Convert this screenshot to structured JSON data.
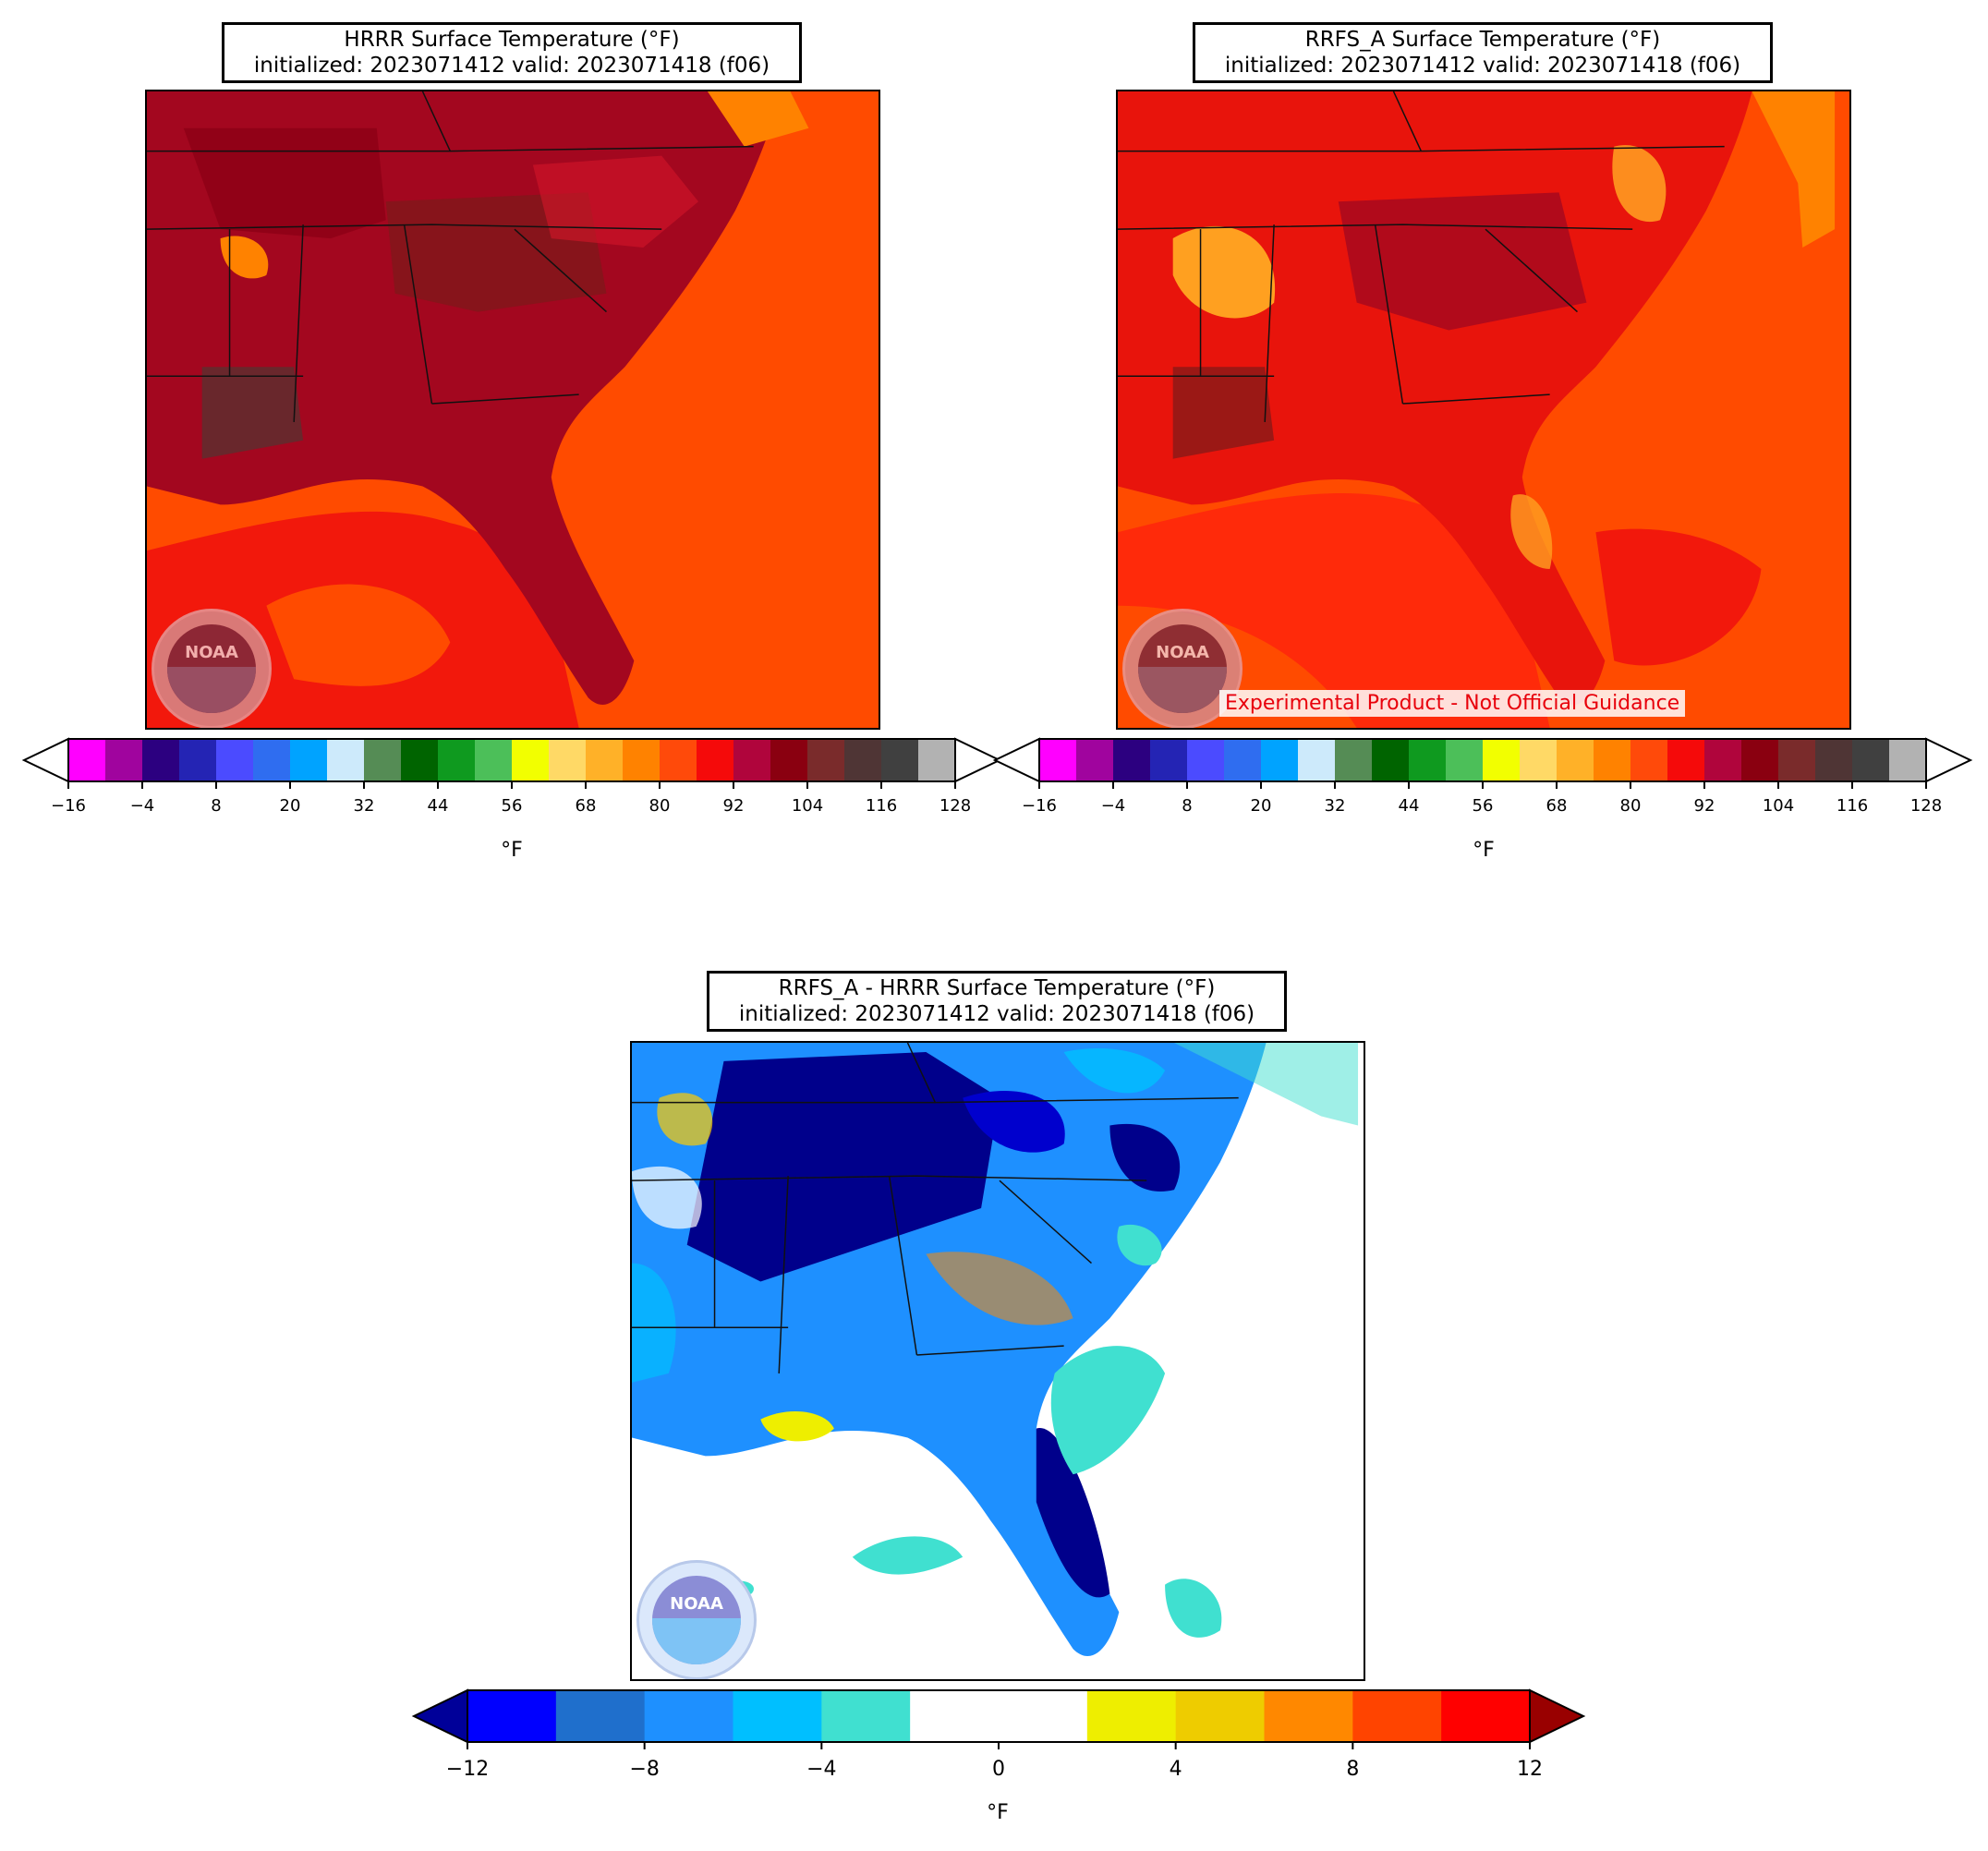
{
  "panels": {
    "hrrr": {
      "title_line1": "HRRR Surface Temperature (°F)",
      "title_line2": "initialized: 2023071412 valid: 2023071418 (f06)"
    },
    "rrfs": {
      "title_line1": "RRFS_A Surface Temperature (°F)",
      "title_line2": "initialized: 2023071412 valid: 2023071418 (f06)",
      "banner": "Experimental Product - Not Official Guidance"
    },
    "diff": {
      "title_line1": "RRFS_A - HRRR Surface Temperature (°F)",
      "title_line2": "initialized: 2023071412 valid: 2023071418 (f06)"
    }
  },
  "logo": {
    "text": "NOAA",
    "icon": "noaa-logo-icon"
  },
  "temp_colorbar": {
    "unit": "°F",
    "ticks": [
      "−16",
      "−4",
      "8",
      "20",
      "32",
      "44",
      "56",
      "68",
      "80",
      "92",
      "104",
      "116",
      "128"
    ],
    "colors": [
      "#ff00ff",
      "#a0049e",
      "#2c0080",
      "#2424b4",
      "#4b4bff",
      "#2f6df0",
      "#00a3ff",
      "#cdeafb",
      "#558c55",
      "#006400",
      "#0f9a1f",
      "#4cbf59",
      "#f2ff00",
      "#ffd966",
      "#ffb128",
      "#ff8200",
      "#ff4a0a",
      "#f50a0a",
      "#b0053c",
      "#8a0010",
      "#7a2b2b",
      "#4f3535",
      "#404040",
      "#b2b2b2"
    ],
    "over_color": "#ffffff",
    "under_color": "#ffffff"
  },
  "diff_colorbar": {
    "unit": "°F",
    "ticks": [
      "−12",
      "−8",
      "−4",
      "0",
      "4",
      "8",
      "12"
    ],
    "colors": [
      "#0000ff",
      "#1f6fcc",
      "#1e90ff",
      "#00bfff",
      "#40e0d0",
      "#ffffff",
      "#ffffff",
      "#eeee00",
      "#eecc00",
      "#ff8800",
      "#ff4400",
      "#ff0000"
    ],
    "under_color": "#000099",
    "over_color": "#990000"
  }
}
